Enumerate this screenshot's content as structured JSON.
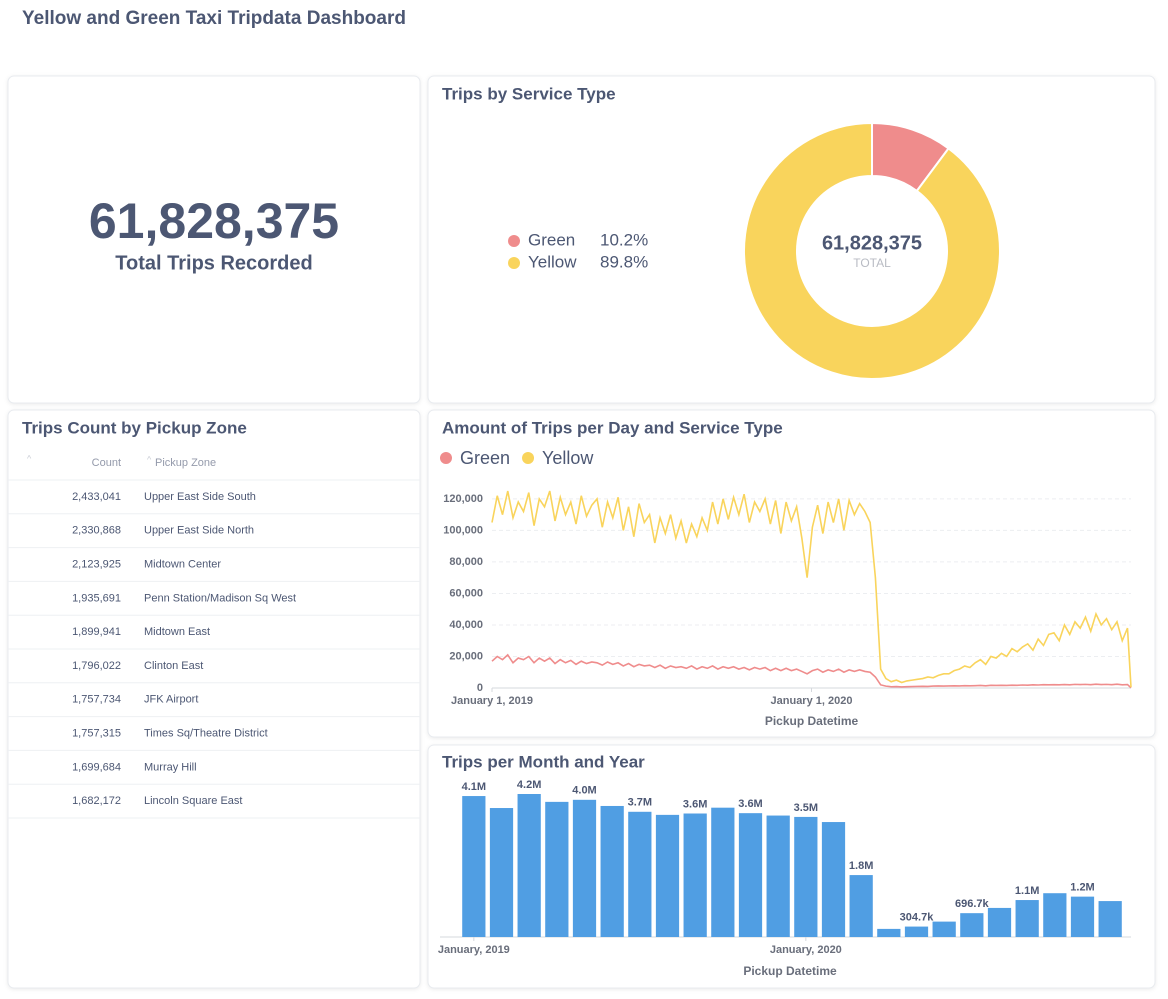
{
  "header": {
    "title": "Yellow and Green Taxi Tripdata Dashboard"
  },
  "scalar": {
    "value": 61828375,
    "label": "61,828,375",
    "caption": "Total Trips Recorded"
  },
  "table": {
    "title": "Trips Count by Pickup Zone",
    "columns": [
      "Count",
      "Pickup Zone"
    ],
    "rows": [
      [
        "2,433,041",
        "Upper East Side South"
      ],
      [
        "2,330,868",
        "Upper East Side North"
      ],
      [
        "2,123,925",
        "Midtown Center"
      ],
      [
        "1,935,691",
        "Penn Station/Madison Sq West"
      ],
      [
        "1,899,941",
        "Midtown East"
      ],
      [
        "1,796,022",
        "Clinton East"
      ],
      [
        "1,757,734",
        "JFK Airport"
      ],
      [
        "1,757,315",
        "Times Sq/Theatre District"
      ],
      [
        "1,699,684",
        "Murray Hill"
      ],
      [
        "1,682,172",
        "Lincoln Square East"
      ]
    ]
  },
  "chart_data": [
    {
      "type": "pie",
      "title": "Trips by Service Type",
      "categories": [
        "Green",
        "Yellow"
      ],
      "values": [
        10.2,
        89.8
      ],
      "value_labels": [
        "10.2%",
        "89.8%"
      ],
      "colors": [
        "#ef8c8c",
        "#f9d45c"
      ],
      "center": {
        "value": 61828375,
        "label": "61,828,375",
        "caption": "TOTAL"
      }
    },
    {
      "type": "line",
      "title": "Amount of Trips per Day and Service Type",
      "x_label": "Pickup Datetime",
      "x": [
        "2019-01-01",
        "2019-01-07",
        "2019-01-13",
        "2019-01-19",
        "2019-01-25",
        "2019-01-31",
        "2019-02-06",
        "2019-02-12",
        "2019-02-18",
        "2019-02-24",
        "2019-03-02",
        "2019-03-08",
        "2019-03-14",
        "2019-03-20",
        "2019-03-26",
        "2019-04-01",
        "2019-04-07",
        "2019-04-13",
        "2019-04-19",
        "2019-04-25",
        "2019-05-01",
        "2019-05-07",
        "2019-05-13",
        "2019-05-19",
        "2019-05-25",
        "2019-05-31",
        "2019-06-06",
        "2019-06-12",
        "2019-06-18",
        "2019-06-24",
        "2019-06-30",
        "2019-07-06",
        "2019-07-12",
        "2019-07-18",
        "2019-07-24",
        "2019-07-30",
        "2019-08-05",
        "2019-08-11",
        "2019-08-17",
        "2019-08-23",
        "2019-08-29",
        "2019-09-04",
        "2019-09-10",
        "2019-09-16",
        "2019-09-22",
        "2019-09-28",
        "2019-10-04",
        "2019-10-10",
        "2019-10-16",
        "2019-10-22",
        "2019-10-28",
        "2019-11-03",
        "2019-11-09",
        "2019-11-15",
        "2019-11-21",
        "2019-11-27",
        "2019-12-03",
        "2019-12-09",
        "2019-12-15",
        "2019-12-21",
        "2019-12-27",
        "2020-01-02",
        "2020-01-08",
        "2020-01-14",
        "2020-01-20",
        "2020-01-26",
        "2020-02-01",
        "2020-02-07",
        "2020-02-13",
        "2020-02-19",
        "2020-02-25",
        "2020-03-02",
        "2020-03-08",
        "2020-03-14",
        "2020-03-20",
        "2020-03-26",
        "2020-04-01",
        "2020-04-07",
        "2020-04-13",
        "2020-04-19",
        "2020-04-25",
        "2020-05-01",
        "2020-05-07",
        "2020-05-13",
        "2020-05-19",
        "2020-05-25",
        "2020-05-31",
        "2020-06-06",
        "2020-06-12",
        "2020-06-18",
        "2020-06-24",
        "2020-06-30",
        "2020-07-06",
        "2020-07-12",
        "2020-07-18",
        "2020-07-24",
        "2020-07-30",
        "2020-08-05",
        "2020-08-11",
        "2020-08-17",
        "2020-08-23",
        "2020-08-29",
        "2020-09-04",
        "2020-09-10",
        "2020-09-16",
        "2020-09-22",
        "2020-09-28",
        "2020-10-04",
        "2020-10-10",
        "2020-10-16",
        "2020-10-22",
        "2020-10-28",
        "2020-11-03",
        "2020-11-09",
        "2020-11-15",
        "2020-11-21",
        "2020-11-27",
        "2020-12-03",
        "2020-12-09",
        "2020-12-15",
        "2020-12-21",
        "2020-12-27",
        "2020-12-31"
      ],
      "series": [
        {
          "name": "Green",
          "color": "#ef8c8c",
          "values": [
            17000,
            20000,
            18000,
            21000,
            16000,
            19000,
            18000,
            20000,
            16000,
            19000,
            17000,
            19000,
            15500,
            18000,
            16000,
            17500,
            15000,
            17000,
            15500,
            16500,
            16000,
            14500,
            16500,
            15000,
            16000,
            14000,
            15500,
            13500,
            15000,
            14000,
            14500,
            13000,
            14500,
            12500,
            14000,
            13000,
            13500,
            12500,
            14000,
            12000,
            13500,
            12500,
            14000,
            12000,
            13500,
            12500,
            13500,
            12000,
            13000,
            11500,
            13000,
            12000,
            13000,
            11000,
            12500,
            11000,
            12500,
            11000,
            12000,
            10500,
            9000,
            11000,
            12000,
            10000,
            11500,
            10500,
            12000,
            10000,
            11500,
            10500,
            11500,
            10500,
            10000,
            7000,
            2000,
            1200,
            800,
            900,
            700,
            850,
            900,
            1000,
            1100,
            1000,
            1200,
            1300,
            1200,
            1300,
            1400,
            1300,
            1500,
            1400,
            1500,
            1600,
            1400,
            1700,
            1600,
            1700,
            1600,
            1800,
            1700,
            1900,
            1800,
            2000,
            1900,
            2100,
            2000,
            2100,
            2000,
            2200,
            2000,
            2300,
            2200,
            2300,
            2100,
            2400,
            2200,
            2300,
            2100,
            2400,
            2000,
            2200,
            100
          ]
        },
        {
          "name": "Yellow",
          "color": "#f9d45c",
          "values": [
            105000,
            122000,
            110000,
            125000,
            108000,
            118000,
            112000,
            124000,
            103000,
            120000,
            115000,
            125000,
            106000,
            121000,
            110000,
            118000,
            104000,
            122000,
            109000,
            116000,
            120000,
            102000,
            118000,
            108000,
            121000,
            100000,
            115000,
            96000,
            117000,
            105000,
            110000,
            92000,
            108000,
            98000,
            110000,
            95000,
            106000,
            92000,
            104000,
            96000,
            108000,
            100000,
            118000,
            104000,
            120000,
            107000,
            121000,
            110000,
            123000,
            105000,
            118000,
            112000,
            120000,
            104000,
            119000,
            98000,
            118000,
            106000,
            115000,
            95000,
            70000,
            102000,
            116000,
            98000,
            118000,
            105000,
            120000,
            100000,
            119000,
            110000,
            117000,
            112000,
            105000,
            70000,
            12000,
            6000,
            4000,
            5000,
            3500,
            4500,
            5000,
            5500,
            6000,
            7000,
            6500,
            8000,
            9000,
            9000,
            11000,
            12000,
            14000,
            13000,
            16000,
            18000,
            15000,
            20000,
            19000,
            22000,
            20000,
            25000,
            23000,
            26000,
            28000,
            24000,
            31000,
            27000,
            34000,
            35000,
            30000,
            40000,
            34000,
            42000,
            38000,
            45000,
            36000,
            47000,
            40000,
            44000,
            37000,
            42000,
            30000,
            38000,
            500
          ]
        }
      ],
      "xlim": [
        "2019-01-01",
        "2020-12-31"
      ],
      "xticks": [
        {
          "value": "2019-01-01",
          "label": "January 1, 2019"
        },
        {
          "value": "2020-01-01",
          "label": "January 1, 2020"
        }
      ],
      "ylim": [
        0,
        125000
      ],
      "yticks": [
        0,
        {
          "value": 20000,
          "label": "20,000"
        },
        {
          "value": 40000,
          "label": "40,000"
        },
        {
          "value": 60000,
          "label": "60,000"
        },
        {
          "value": 80000,
          "label": "80,000"
        },
        {
          "value": 100000,
          "label": "100,000"
        },
        {
          "value": 120000,
          "label": "120,000"
        }
      ],
      "grid": true,
      "legend": "top-left"
    },
    {
      "type": "bar",
      "title": "Trips per Month and Year",
      "x_label": "Pickup Datetime",
      "color": "#509ee3",
      "categories": [
        "January, 2019",
        null,
        null,
        null,
        null,
        null,
        null,
        null,
        null,
        null,
        null,
        null,
        "January, 2020",
        null,
        null,
        null,
        null,
        null,
        null,
        null,
        null,
        null,
        null,
        null
      ],
      "values": [
        4120000,
        3770000,
        4180000,
        3950000,
        4010000,
        3830000,
        3660000,
        3570000,
        3610000,
        3780000,
        3620000,
        3550000,
        3510000,
        3360000,
        1810000,
        237000,
        304700,
        450000,
        696700,
        850000,
        1080000,
        1280000,
        1180000,
        1050000
      ],
      "value_labels": [
        "4.1M",
        null,
        "4.2M",
        null,
        "4.0M",
        null,
        "3.7M",
        null,
        "3.6M",
        null,
        "3.6M",
        null,
        "3.5M",
        null,
        "1.8M",
        null,
        "304.7k",
        null,
        "696.7k",
        null,
        "1.1M",
        null,
        "1.2M",
        null
      ]
    }
  ]
}
